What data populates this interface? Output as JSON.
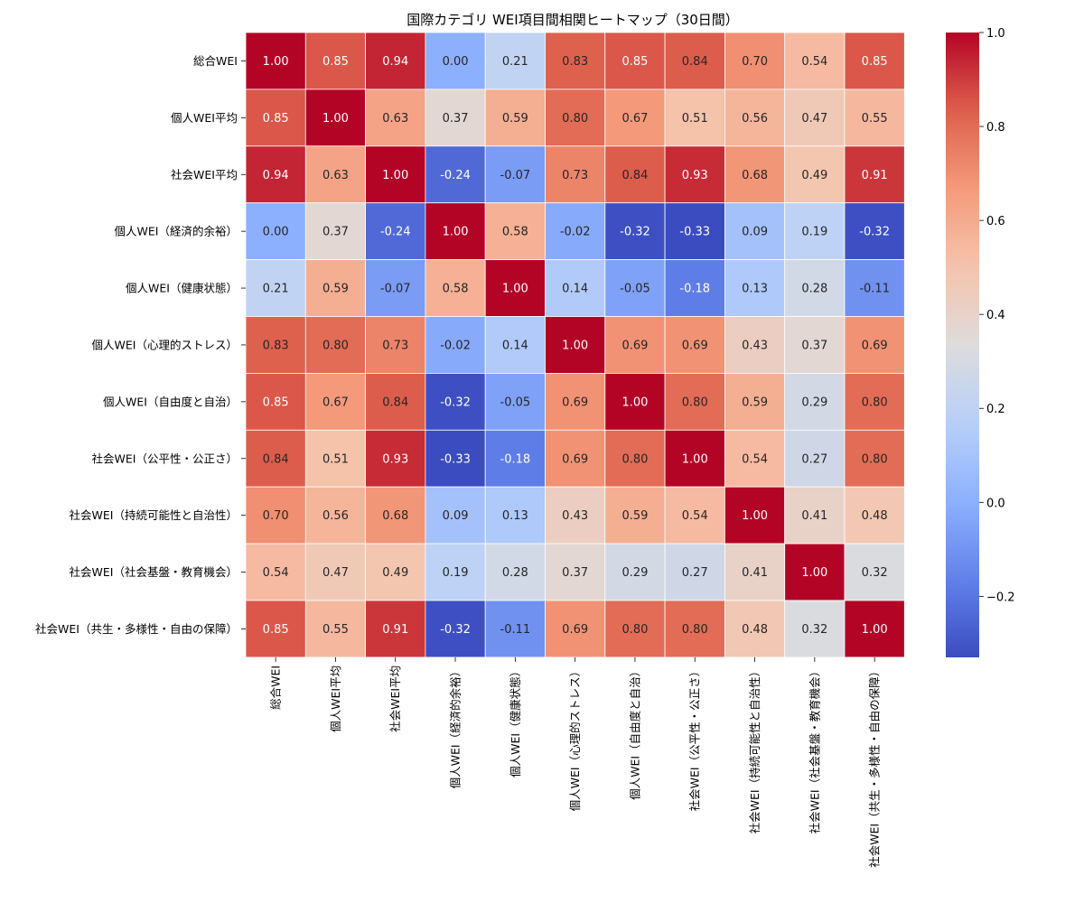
{
  "chart_data": {
    "type": "heatmap",
    "title": "国際カテゴリ WEI項目間相関ヒートマップ（30日間）",
    "labels": [
      "総合WEI",
      "個人WEI平均",
      "社会WEI平均",
      "個人WEI（経済的余裕）",
      "個人WEI（健康状態）",
      "個人WEI（心理的ストレス）",
      "個人WEI（自由度と自治）",
      "社会WEI（公平性・公正さ）",
      "社会WEI（持続可能性と自治性）",
      "社会WEI（社会基盤・教育機会）",
      "社会WEI（共生・多様性・自由の保障）"
    ],
    "matrix": [
      [
        1.0,
        0.85,
        0.94,
        0.0,
        0.21,
        0.83,
        0.85,
        0.84,
        0.7,
        0.54,
        0.85
      ],
      [
        0.85,
        1.0,
        0.63,
        0.37,
        0.59,
        0.8,
        0.67,
        0.51,
        0.56,
        0.47,
        0.55
      ],
      [
        0.94,
        0.63,
        1.0,
        -0.24,
        -0.07,
        0.73,
        0.84,
        0.93,
        0.68,
        0.49,
        0.91
      ],
      [
        0.0,
        0.37,
        -0.24,
        1.0,
        0.58,
        -0.02,
        -0.32,
        -0.33,
        0.09,
        0.19,
        -0.32
      ],
      [
        0.21,
        0.59,
        -0.07,
        0.58,
        1.0,
        0.14,
        -0.05,
        -0.18,
        0.13,
        0.28,
        -0.11
      ],
      [
        0.83,
        0.8,
        0.73,
        -0.02,
        0.14,
        1.0,
        0.69,
        0.69,
        0.43,
        0.37,
        0.69
      ],
      [
        0.85,
        0.67,
        0.84,
        -0.32,
        -0.05,
        0.69,
        1.0,
        0.8,
        0.59,
        0.29,
        0.8
      ],
      [
        0.84,
        0.51,
        0.93,
        -0.33,
        -0.18,
        0.69,
        0.8,
        1.0,
        0.54,
        0.27,
        0.8
      ],
      [
        0.7,
        0.56,
        0.68,
        0.09,
        0.13,
        0.43,
        0.59,
        0.54,
        1.0,
        0.41,
        0.48
      ],
      [
        0.54,
        0.47,
        0.49,
        0.19,
        0.28,
        0.37,
        0.29,
        0.27,
        0.41,
        1.0,
        0.32
      ],
      [
        0.85,
        0.55,
        0.91,
        -0.32,
        -0.11,
        0.69,
        0.8,
        0.8,
        0.48,
        0.32,
        1.0
      ]
    ],
    "value_format": "0.00",
    "colormap": "coolwarm",
    "vmin": -0.33,
    "vmax": 1.0,
    "colorbar_ticks": [
      -0.2,
      0.0,
      0.2,
      0.4,
      0.6,
      0.8,
      1.0
    ],
    "colorbar_tick_labels": [
      "−0.2",
      "0.0",
      "0.2",
      "0.4",
      "0.6",
      "0.8",
      "1.0"
    ]
  }
}
